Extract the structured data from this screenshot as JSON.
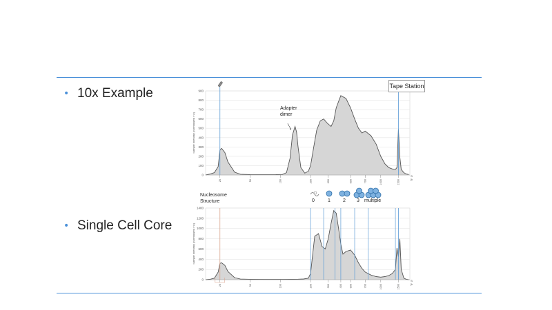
{
  "slide": {
    "rule_color": "#4a90d9",
    "bullets": [
      {
        "text": "10x Example"
      },
      {
        "text": "Single Cell Core"
      }
    ],
    "callout": "Tape Station",
    "nucleosome": {
      "label_line1": "Nucleosome",
      "label_line2": "Structure",
      "states": [
        "0",
        "1",
        "2",
        "3",
        "multiple"
      ],
      "icon_fill": "#7fb2e0",
      "icon_stroke": "#2f6fa8"
    }
  },
  "chart_data": [
    {
      "type": "area",
      "name": "10x Example electropherogram",
      "ylim": [
        0,
        900
      ],
      "y_ticks": [
        0,
        100,
        200,
        300,
        400,
        500,
        600,
        700,
        800,
        900
      ],
      "y_tick_labels": [
        "0",
        "100",
        "200",
        "300",
        "400",
        "500",
        "600",
        "700",
        "800",
        "900"
      ],
      "ylabel": "Sample Intensity [Normalized FU]",
      "xlabel_line1": "Size",
      "xlabel_line2": "[bp]",
      "x_ticks": [
        25,
        50,
        100,
        200,
        300,
        500,
        700,
        1000,
        1500
      ],
      "x_tick_labels": [
        "25",
        "50",
        "100",
        "200",
        "300",
        "500",
        "700",
        "1000",
        "1500"
      ],
      "annotation": {
        "line1": "Adapter",
        "line2": "dimer"
      },
      "marker_lines": [
        25,
        1500
      ],
      "x": [
        18,
        20,
        22,
        24,
        25,
        26,
        28,
        30,
        35,
        40,
        50,
        70,
        90,
        105,
        115,
        125,
        132,
        140,
        145,
        150,
        160,
        175,
        190,
        200,
        215,
        230,
        250,
        270,
        290,
        300,
        320,
        340,
        360,
        400,
        450,
        500,
        550,
        600,
        650,
        700,
        800,
        900,
        1000,
        1100,
        1200,
        1300,
        1400,
        1450,
        1500,
        1550,
        1600,
        1700,
        1800,
        1900
      ],
      "y": [
        0,
        10,
        25,
        90,
        270,
        285,
        240,
        140,
        30,
        8,
        4,
        3,
        4,
        6,
        25,
        180,
        430,
        520,
        460,
        300,
        80,
        20,
        40,
        100,
        300,
        480,
        580,
        600,
        560,
        545,
        520,
        580,
        720,
        850,
        820,
        720,
        600,
        500,
        450,
        470,
        420,
        330,
        200,
        120,
        80,
        65,
        60,
        80,
        490,
        190,
        60,
        25,
        10,
        5
      ]
    },
    {
      "type": "area",
      "name": "Single Cell Core electropherogram",
      "ylim": [
        0,
        1400
      ],
      "y_ticks": [
        0,
        200,
        400,
        600,
        800,
        1000,
        1200,
        1400
      ],
      "y_tick_labels": [
        "0",
        "200",
        "400",
        "600",
        "800",
        "1000",
        "1200",
        "1400"
      ],
      "ylabel": "Sample Intensity [Normalized FU]",
      "xlabel_line1": "Size",
      "xlabel_line2": "[bp]",
      "x_ticks": [
        25,
        50,
        100,
        200,
        300,
        400,
        500,
        700,
        1000,
        1500
      ],
      "x_tick_labels": [
        "25",
        "50",
        "100",
        "200",
        "300",
        "400",
        "500",
        "700",
        "1000",
        "1500"
      ],
      "marker_lines": [
        25,
        1500
      ],
      "region_lines": [
        200,
        270,
        350,
        400,
        550,
        750,
        1400
      ],
      "x": [
        18,
        20,
        22,
        24,
        25,
        26,
        28,
        30,
        35,
        40,
        50,
        70,
        90,
        110,
        130,
        150,
        170,
        190,
        200,
        210,
        220,
        240,
        260,
        280,
        300,
        320,
        340,
        360,
        380,
        400,
        420,
        450,
        500,
        550,
        600,
        650,
        700,
        800,
        900,
        1000,
        1100,
        1200,
        1300,
        1400,
        1450,
        1500,
        1550,
        1600,
        1700,
        1800,
        1900
      ],
      "y": [
        0,
        10,
        30,
        150,
        320,
        330,
        280,
        160,
        40,
        12,
        8,
        6,
        6,
        6,
        8,
        10,
        14,
        30,
        120,
        500,
        850,
        900,
        650,
        600,
        800,
        1100,
        1350,
        1300,
        1000,
        700,
        500,
        550,
        580,
        480,
        330,
        220,
        150,
        90,
        60,
        50,
        60,
        80,
        120,
        200,
        620,
        450,
        800,
        200,
        30,
        8,
        0
      ]
    }
  ]
}
